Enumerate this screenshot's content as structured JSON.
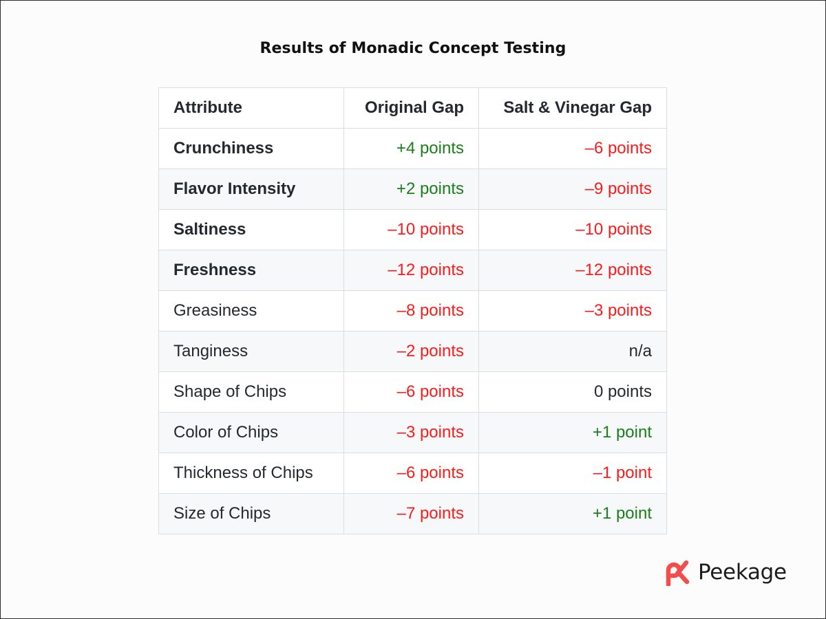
{
  "title": "Results of Monadic Concept Testing",
  "table": {
    "headers": [
      "Attribute",
      "Original Gap",
      "Salt & Vinegar Gap"
    ],
    "rows": [
      {
        "attribute": "Crunchiness",
        "attribute_bold": true,
        "original": "+4 points",
        "original_tone": "pos",
        "salt_vinegar": "–6 points",
        "salt_vinegar_tone": "neg"
      },
      {
        "attribute": "Flavor Intensity",
        "attribute_bold": true,
        "original": "+2 points",
        "original_tone": "pos",
        "salt_vinegar": "–9 points",
        "salt_vinegar_tone": "neg"
      },
      {
        "attribute": "Saltiness",
        "attribute_bold": true,
        "original": "–10 points",
        "original_tone": "neg",
        "salt_vinegar": "–10 points",
        "salt_vinegar_tone": "neg"
      },
      {
        "attribute": "Freshness",
        "attribute_bold": true,
        "original": "–12 points",
        "original_tone": "neg",
        "salt_vinegar": "–12 points",
        "salt_vinegar_tone": "neg"
      },
      {
        "attribute": "Greasiness",
        "attribute_bold": false,
        "original": "–8 points",
        "original_tone": "neg",
        "salt_vinegar": "–3 points",
        "salt_vinegar_tone": "neg"
      },
      {
        "attribute": "Tanginess",
        "attribute_bold": false,
        "original": "–2 points",
        "original_tone": "neg",
        "salt_vinegar": "n/a",
        "salt_vinegar_tone": "neu"
      },
      {
        "attribute": "Shape of Chips",
        "attribute_bold": false,
        "original": "–6 points",
        "original_tone": "neg",
        "salt_vinegar": "0 points",
        "salt_vinegar_tone": "neu"
      },
      {
        "attribute": "Color of Chips",
        "attribute_bold": false,
        "original": "–3 points",
        "original_tone": "neg",
        "salt_vinegar": "+1 point",
        "salt_vinegar_tone": "pos"
      },
      {
        "attribute": "Thickness of Chips",
        "attribute_bold": false,
        "original": "–6 points",
        "original_tone": "neg",
        "salt_vinegar": "–1 point",
        "salt_vinegar_tone": "neg"
      },
      {
        "attribute": "Size of Chips",
        "attribute_bold": false,
        "original": "–7 points",
        "original_tone": "neg",
        "salt_vinegar": "+1 point",
        "salt_vinegar_tone": "pos"
      }
    ]
  },
  "colors": {
    "positive": "#1a7f1a",
    "negative": "#ff1a1a",
    "neutral": "#24292f",
    "brand": "#f24c4c"
  },
  "logo": {
    "text": "Peekage",
    "icon": "peekage-pk-logo-icon"
  }
}
